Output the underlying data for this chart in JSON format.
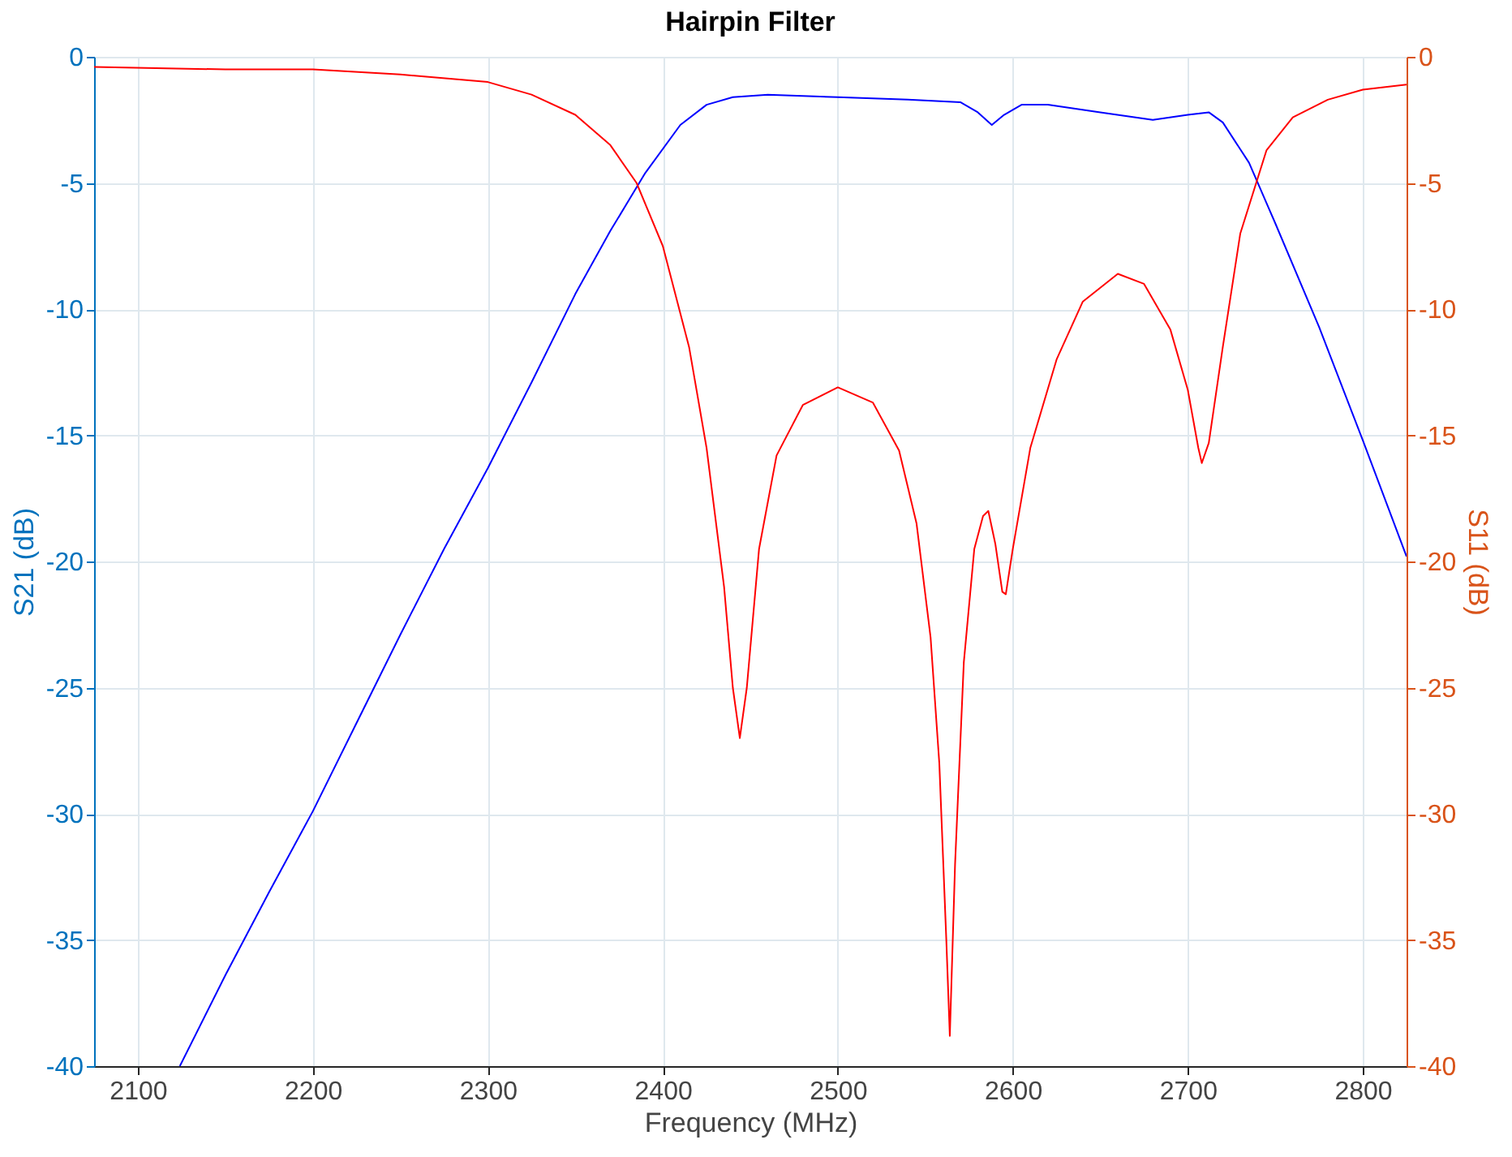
{
  "chart_data": {
    "type": "line",
    "title": "Hairpin Filter",
    "xlabel": "Frequency (MHz)",
    "ylabel": "S21 (dB)",
    "y2label": "S11 (dB)",
    "xlim": [
      2075,
      2825
    ],
    "xticks": [
      2100,
      2200,
      2300,
      2400,
      2500,
      2600,
      2700,
      2800
    ],
    "ylim": [
      -40,
      0
    ],
    "yticks": [
      -40,
      -35,
      -30,
      -25,
      -20,
      -15,
      -10,
      -5,
      0
    ],
    "y2lim": [
      -40,
      0
    ],
    "y2ticks": [
      -40,
      -35,
      -30,
      -25,
      -20,
      -15,
      -10,
      -5,
      0
    ],
    "grid": true,
    "marker": "none",
    "line_style": "solid",
    "series": [
      {
        "color": "#0000ff",
        "x": [
          2124,
          2150,
          2175,
          2200,
          2225,
          2250,
          2275,
          2300,
          2325,
          2350,
          2370,
          2390,
          2410,
          2425,
          2440,
          2460,
          2500,
          2540,
          2570,
          2580,
          2588,
          2595,
          2605,
          2620,
          2650,
          2680,
          2700,
          2712,
          2720,
          2735,
          2750,
          2775,
          2800,
          2825
        ],
        "values": [
          -40,
          -36.4,
          -33.1,
          -29.9,
          -26.4,
          -22.9,
          -19.5,
          -16.3,
          -12.9,
          -9.4,
          -6.9,
          -4.6,
          -2.7,
          -1.9,
          -1.6,
          -1.5,
          -1.6,
          -1.7,
          -1.8,
          -2.2,
          -2.7,
          -2.3,
          -1.9,
          -1.9,
          -2.2,
          -2.5,
          -2.3,
          -2.2,
          -2.6,
          -4.2,
          -6.6,
          -10.7,
          -15.2,
          -19.8
        ]
      },
      {
        "color": "#ff0000",
        "axis": "y2",
        "x": [
          2075,
          2150,
          2200,
          2250,
          2300,
          2325,
          2350,
          2370,
          2385,
          2400,
          2415,
          2425,
          2435,
          2440,
          2444,
          2448,
          2455,
          2465,
          2480,
          2500,
          2520,
          2535,
          2545,
          2553,
          2558,
          2562,
          2564,
          2567,
          2572,
          2578,
          2583,
          2586,
          2590,
          2594,
          2596,
          2600,
          2610,
          2625,
          2640,
          2660,
          2675,
          2690,
          2700,
          2706,
          2708,
          2712,
          2720,
          2730,
          2745,
          2760,
          2780,
          2800,
          2825
        ],
        "values": [
          -0.4,
          -0.5,
          -0.5,
          -0.7,
          -1.0,
          -1.5,
          -2.3,
          -3.5,
          -5.0,
          -7.5,
          -11.5,
          -15.5,
          -21,
          -25,
          -27,
          -25,
          -19.5,
          -15.8,
          -13.8,
          -13.1,
          -13.7,
          -15.6,
          -18.5,
          -23,
          -28,
          -35,
          -38.8,
          -32,
          -24,
          -19.5,
          -18.2,
          -18.0,
          -19.3,
          -21.2,
          -21.3,
          -19.5,
          -15.5,
          -12.0,
          -9.7,
          -8.6,
          -9.0,
          -10.8,
          -13.2,
          -15.5,
          -16.1,
          -15.3,
          -11.5,
          -7.0,
          -3.7,
          -2.4,
          -1.7,
          -1.3,
          -1.1
        ]
      }
    ]
  }
}
